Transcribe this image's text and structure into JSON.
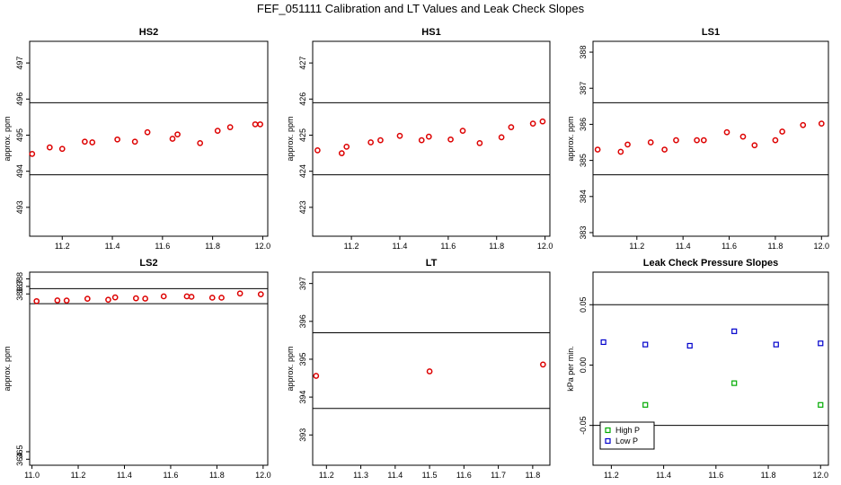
{
  "figure": {
    "title": "FEF_051111  Calibration and LT Values and Leak Check Slopes",
    "colors": {
      "red": "#dd0000",
      "green": "#00aa00",
      "blue": "#0000cc",
      "axis": "#000000"
    }
  },
  "chart_data": [
    {
      "id": "hs2",
      "type": "scatter",
      "title": "HS2",
      "ylabel": "approx. ppm",
      "xlim": [
        11.07,
        12.02
      ],
      "ylim": [
        492.2,
        497.6
      ],
      "xticks": [
        "11.2",
        "11.4",
        "11.6",
        "11.8",
        "12.0"
      ],
      "yticks": [
        "493",
        "494",
        "495",
        "496",
        "497"
      ],
      "hlines": [
        495.9,
        493.9
      ],
      "series": [
        {
          "color": "red",
          "marker": "circle",
          "x": [
            11.08,
            11.15,
            11.2,
            11.29,
            11.32,
            11.42,
            11.49,
            11.54,
            11.64,
            11.66,
            11.75,
            11.82,
            11.87,
            11.97,
            11.99
          ],
          "y": [
            494.48,
            494.66,
            494.62,
            494.82,
            494.8,
            494.88,
            494.82,
            495.08,
            494.9,
            495.02,
            494.78,
            495.12,
            495.22,
            495.3,
            495.3
          ]
        }
      ]
    },
    {
      "id": "hs1",
      "type": "scatter",
      "title": "HS1",
      "ylabel": "approx. ppm",
      "xlim": [
        11.04,
        12.02
      ],
      "ylim": [
        422.2,
        427.6
      ],
      "xticks": [
        "11.2",
        "11.4",
        "11.6",
        "11.8",
        "12.0"
      ],
      "yticks": [
        "423",
        "424",
        "425",
        "426",
        "427"
      ],
      "hlines": [
        425.9,
        423.9
      ],
      "series": [
        {
          "color": "red",
          "marker": "circle",
          "x": [
            11.06,
            11.16,
            11.18,
            11.28,
            11.32,
            11.4,
            11.49,
            11.52,
            11.61,
            11.66,
            11.73,
            11.82,
            11.86,
            11.95,
            11.99
          ],
          "y": [
            424.58,
            424.5,
            424.68,
            424.8,
            424.86,
            424.98,
            424.86,
            424.96,
            424.88,
            425.12,
            424.78,
            424.94,
            425.22,
            425.32,
            425.38
          ]
        }
      ]
    },
    {
      "id": "ls1",
      "type": "scatter",
      "title": "LS1",
      "ylabel": "approx. ppm",
      "xlim": [
        11.01,
        12.03
      ],
      "ylim": [
        382.9,
        388.3
      ],
      "xticks": [
        "11.2",
        "11.4",
        "11.6",
        "11.8",
        "12.0"
      ],
      "yticks": [
        "383",
        "384",
        "385",
        "386",
        "387",
        "388"
      ],
      "hlines": [
        386.6,
        384.6
      ],
      "series": [
        {
          "color": "red",
          "marker": "circle",
          "x": [
            11.03,
            11.13,
            11.16,
            11.26,
            11.32,
            11.37,
            11.46,
            11.49,
            11.59,
            11.66,
            11.71,
            11.8,
            11.83,
            11.92,
            12.0
          ],
          "y": [
            385.3,
            385.24,
            385.44,
            385.5,
            385.3,
            385.56,
            385.56,
            385.56,
            385.78,
            385.66,
            385.42,
            385.56,
            385.8,
            385.98,
            386.02
          ]
        }
      ]
    },
    {
      "id": "ls2",
      "type": "scatter",
      "title": "LS2",
      "ylabel": "approx. ppm",
      "xlim": [
        10.99,
        12.02
      ],
      "ylim": [
        363.2,
        388.9
      ],
      "xticks": [
        "11.0",
        "11.2",
        "11.4",
        "11.6",
        "11.8",
        "12.0"
      ],
      "yticks": [
        "364",
        "365",
        "386",
        "387",
        "388"
      ],
      "hlines": [
        386.7,
        384.7
      ],
      "series": [
        {
          "color": "red",
          "marker": "circle",
          "x": [
            11.02,
            11.11,
            11.15,
            11.24,
            11.33,
            11.36,
            11.45,
            11.49,
            11.57,
            11.67,
            11.69,
            11.78,
            11.82,
            11.9,
            11.99
          ],
          "y": [
            385.04,
            385.14,
            385.12,
            385.36,
            385.22,
            385.54,
            385.42,
            385.38,
            385.68,
            385.68,
            385.62,
            385.5,
            385.5,
            386.06,
            385.96
          ]
        }
      ]
    },
    {
      "id": "lt",
      "type": "scatter",
      "title": "LT",
      "ylabel": "approx. ppm",
      "xlim": [
        11.16,
        11.85
      ],
      "ylim": [
        392.2,
        397.3
      ],
      "xticks": [
        "11.2",
        "11.3",
        "11.4",
        "11.5",
        "11.6",
        "11.7",
        "11.8"
      ],
      "yticks": [
        "393",
        "394",
        "395",
        "396",
        "397"
      ],
      "hlines": [
        395.7,
        393.7
      ],
      "series": [
        {
          "color": "red",
          "marker": "circle",
          "x": [
            11.17,
            11.5,
            11.83
          ],
          "y": [
            394.56,
            394.68,
            394.86
          ]
        }
      ]
    },
    {
      "id": "leak",
      "type": "scatter",
      "title": "Leak Check Pressure Slopes",
      "ylabel": "kPa per min.",
      "xlim": [
        11.13,
        12.03
      ],
      "ylim": [
        -0.083,
        0.077
      ],
      "xticks": [
        "11.2",
        "11.4",
        "11.6",
        "11.8",
        "12.0"
      ],
      "yticks": [
        "-0.05",
        "0.00",
        "0.05"
      ],
      "hlines": [
        0.05,
        -0.05
      ],
      "legend": {
        "position": "bottom-left",
        "entries": [
          {
            "label": "High P",
            "color": "green",
            "marker": "square"
          },
          {
            "label": "Low P",
            "color": "blue",
            "marker": "square"
          }
        ]
      },
      "series": [
        {
          "name": "High P",
          "color": "green",
          "marker": "square",
          "x": [
            11.33,
            11.67,
            12.0
          ],
          "y": [
            -0.033,
            -0.015,
            -0.033
          ]
        },
        {
          "name": "Low P",
          "color": "blue",
          "marker": "square",
          "x": [
            11.17,
            11.33,
            11.5,
            11.67,
            11.83,
            12.0
          ],
          "y": [
            0.019,
            0.017,
            0.016,
            0.028,
            0.017,
            0.018
          ]
        }
      ]
    }
  ]
}
